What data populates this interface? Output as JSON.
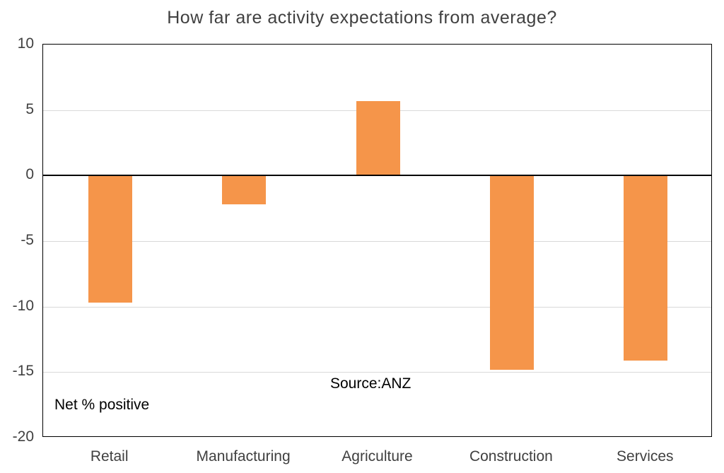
{
  "title": "How far are activity expectations from average?",
  "chart_data": {
    "type": "bar",
    "title": "How far are activity expectations from average?",
    "categories": [
      "Retail",
      "Manufacturing",
      "Agriculture",
      "Construction",
      "Services"
    ],
    "values": [
      -9.7,
      -2.2,
      5.7,
      -14.8,
      -14.1
    ],
    "xlabel": "",
    "ylabel": "Net % positive",
    "ylim": [
      -20,
      10
    ],
    "yticks": [
      10,
      5,
      0,
      -5,
      -10,
      -15,
      -20
    ],
    "grid": true,
    "legend": "none",
    "annotations": [
      {
        "text": "Net % positive",
        "position": "bottom-left"
      },
      {
        "text": "Source:ANZ",
        "position": "bottom-center"
      }
    ]
  },
  "colors": {
    "bar": "#F5954A",
    "grid": "#D9D9D9",
    "axis": "#000000",
    "text": "#404040",
    "background": "#FFFFFF"
  }
}
